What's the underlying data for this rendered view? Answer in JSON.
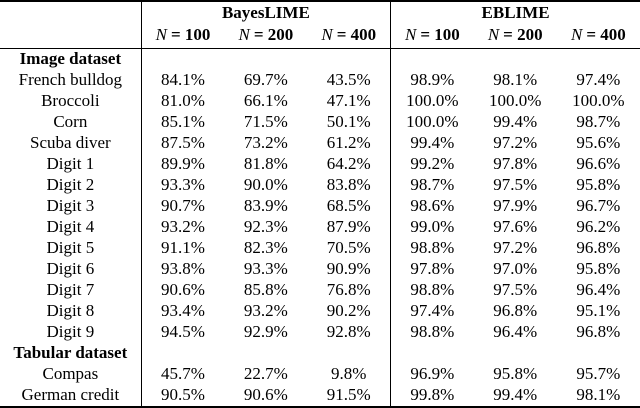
{
  "table": {
    "col_var": "N",
    "groups": [
      {
        "label": "BayesLIME"
      },
      {
        "label": "EBLIME"
      }
    ],
    "columns": [
      "= 100",
      "= 200",
      "= 400",
      "= 100",
      "= 200",
      "= 400"
    ],
    "rows": [
      {
        "type": "section",
        "label": "Image dataset"
      },
      {
        "type": "data",
        "label": "French bulldog",
        "values": [
          "84.1%",
          "69.7%",
          "43.5%",
          "98.9%",
          "98.1%",
          "97.4%"
        ]
      },
      {
        "type": "data",
        "label": "Broccoli",
        "values": [
          "81.0%",
          "66.1%",
          "47.1%",
          "100.0%",
          "100.0%",
          "100.0%"
        ]
      },
      {
        "type": "data",
        "label": "Corn",
        "values": [
          "85.1%",
          "71.5%",
          "50.1%",
          "100.0%",
          "99.4%",
          "98.7%"
        ]
      },
      {
        "type": "data",
        "label": "Scuba diver",
        "values": [
          "87.5%",
          "73.2%",
          "61.2%",
          "99.4%",
          "97.2%",
          "95.6%"
        ]
      },
      {
        "type": "data",
        "label": "Digit 1",
        "values": [
          "89.9%",
          "81.8%",
          "64.2%",
          "99.2%",
          "97.8%",
          "96.6%"
        ]
      },
      {
        "type": "data",
        "label": "Digit 2",
        "values": [
          "93.3%",
          "90.0%",
          "83.8%",
          "98.7%",
          "97.5%",
          "95.8%"
        ]
      },
      {
        "type": "data",
        "label": "Digit 3",
        "values": [
          "90.7%",
          "83.9%",
          "68.5%",
          "98.6%",
          "97.9%",
          "96.7%"
        ]
      },
      {
        "type": "data",
        "label": "Digit 4",
        "values": [
          "93.2%",
          "92.3%",
          "87.9%",
          "99.0%",
          "97.6%",
          "96.2%"
        ]
      },
      {
        "type": "data",
        "label": "Digit 5",
        "values": [
          "91.1%",
          "82.3%",
          "70.5%",
          "98.8%",
          "97.2%",
          "96.8%"
        ]
      },
      {
        "type": "data",
        "label": "Digit 6",
        "values": [
          "93.8%",
          "93.3%",
          "90.9%",
          "97.8%",
          "97.0%",
          "95.8%"
        ]
      },
      {
        "type": "data",
        "label": "Digit 7",
        "values": [
          "90.6%",
          "85.8%",
          "76.8%",
          "98.8%",
          "97.5%",
          "96.4%"
        ]
      },
      {
        "type": "data",
        "label": "Digit 8",
        "values": [
          "93.4%",
          "93.2%",
          "90.2%",
          "97.4%",
          "96.8%",
          "95.1%"
        ]
      },
      {
        "type": "data",
        "label": "Digit 9",
        "values": [
          "94.5%",
          "92.9%",
          "92.8%",
          "98.8%",
          "96.4%",
          "96.8%"
        ]
      },
      {
        "type": "section",
        "label": "Tabular dataset"
      },
      {
        "type": "data",
        "label": "Compas",
        "values": [
          "45.7%",
          "22.7%",
          "9.8%",
          "96.9%",
          "95.8%",
          "95.7%"
        ]
      },
      {
        "type": "data",
        "label": "German credit",
        "values": [
          "90.5%",
          "90.6%",
          "91.5%",
          "99.8%",
          "99.4%",
          "98.1%"
        ]
      }
    ]
  }
}
